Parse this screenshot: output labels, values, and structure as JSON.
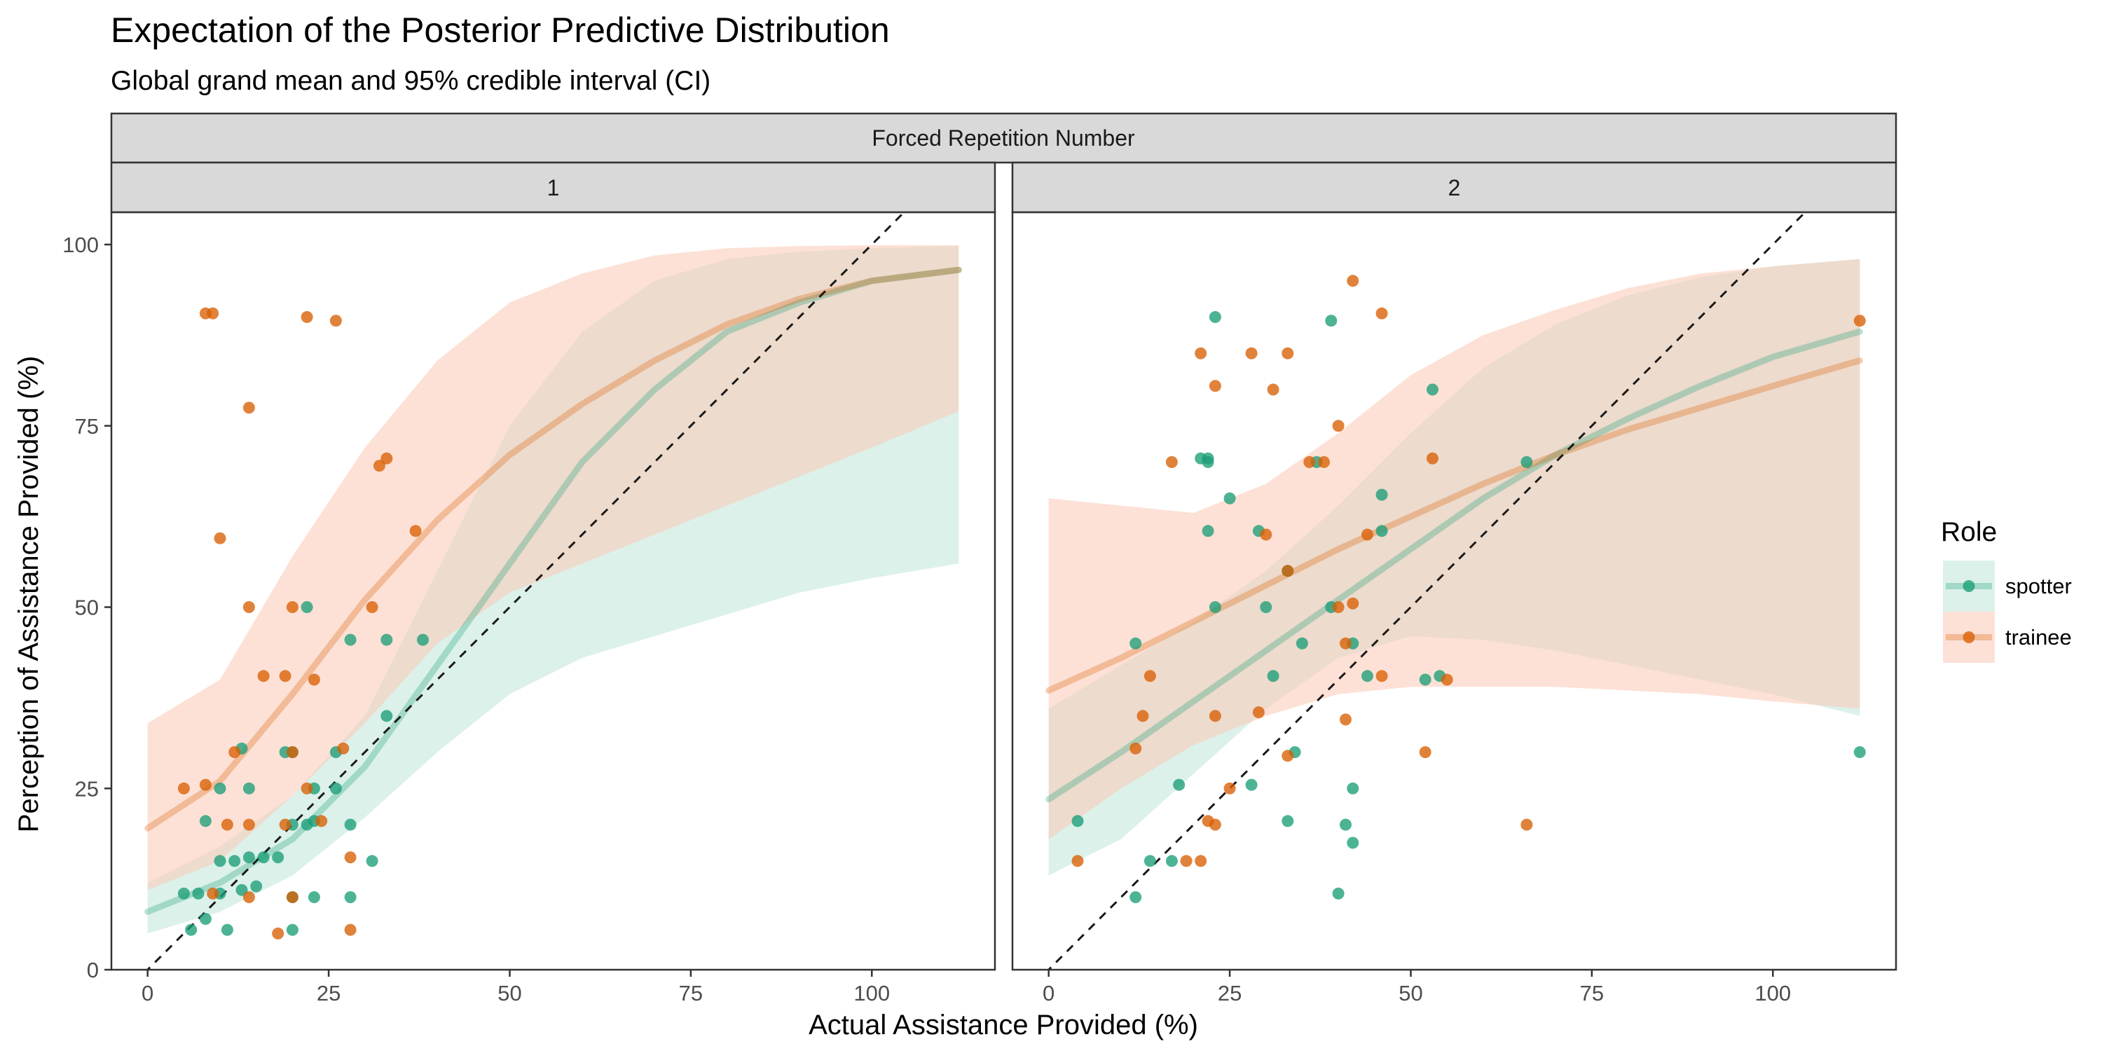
{
  "chart_data": {
    "type": "scatter",
    "title": "Expectation of the Posterior Predictive Distribution",
    "subtitle": "Global grand mean and 95% credible interval (CI)",
    "facet_title": "Forced Repetition Number",
    "xlabel": "Actual Assistance Provided (%)",
    "ylabel": "Perception of Assistance Provided (%)",
    "xlim": [
      -5,
      117
    ],
    "ylim": [
      0,
      100
    ],
    "x_ticks": [
      "0",
      "25",
      "50",
      "75",
      "100"
    ],
    "y_ticks": [
      "0",
      "25",
      "50",
      "75",
      "100"
    ],
    "reference_line": "y = x (dashed)",
    "legend": {
      "title": "Role",
      "position": "right",
      "entries": [
        {
          "name": "spotter",
          "color": "#1b9e77",
          "band_color": "#bfe6d8"
        },
        {
          "name": "trainee",
          "color": "#d95f02",
          "band_color": "#fbc8b4"
        }
      ]
    },
    "panels": [
      {
        "label": "1",
        "fits": [
          {
            "name": "spotter",
            "x": [
              0,
              10,
              20,
              30,
              40,
              50,
              60,
              70,
              80,
              90,
              100,
              112
            ],
            "mean": [
              8,
              12,
              18,
              28,
              42,
              56,
              70,
              80,
              88,
              92,
              95,
              96.5
            ],
            "lower": [
              5,
              8,
              13,
              21,
              30,
              38,
              43,
              46,
              49,
              52,
              54,
              56
            ],
            "upper": [
              12,
              17,
              24,
              35,
              55,
              75,
              88,
              95,
              98,
              99,
              99.5,
              99.8
            ]
          },
          {
            "name": "trainee",
            "x": [
              0,
              10,
              20,
              30,
              40,
              50,
              60,
              70,
              80,
              90,
              100,
              112
            ],
            "mean": [
              19.5,
              26,
              38,
              51,
              62,
              71,
              78,
              84,
              89,
              92.5,
              95,
              96.5
            ],
            "lower": [
              11,
              15,
              24,
              34,
              45,
              52,
              56,
              60,
              64,
              68,
              72,
              77
            ],
            "upper": [
              34,
              40,
              57,
              72,
              84,
              92,
              96,
              98.5,
              99.5,
              99.8,
              99.9,
              99.9
            ]
          }
        ],
        "points": [
          {
            "x": 6,
            "y": 5.5,
            "role": "spotter"
          },
          {
            "x": 11,
            "y": 5.5,
            "role": "spotter"
          },
          {
            "x": 20,
            "y": 5.5,
            "role": "spotter"
          },
          {
            "x": 8,
            "y": 7,
            "role": "spotter"
          },
          {
            "x": 5,
            "y": 10.5,
            "role": "spotter"
          },
          {
            "x": 7,
            "y": 10.5,
            "role": "spotter"
          },
          {
            "x": 10,
            "y": 10.5,
            "role": "spotter"
          },
          {
            "x": 13,
            "y": 11,
            "role": "spotter"
          },
          {
            "x": 15,
            "y": 11.5,
            "role": "spotter"
          },
          {
            "x": 20,
            "y": 10,
            "role": "spotter"
          },
          {
            "x": 23,
            "y": 10,
            "role": "spotter"
          },
          {
            "x": 28,
            "y": 10,
            "role": "spotter"
          },
          {
            "x": 10,
            "y": 15,
            "role": "spotter"
          },
          {
            "x": 12,
            "y": 15,
            "role": "spotter"
          },
          {
            "x": 14,
            "y": 15.5,
            "role": "spotter"
          },
          {
            "x": 16,
            "y": 15.5,
            "role": "spotter"
          },
          {
            "x": 18,
            "y": 15.5,
            "role": "spotter"
          },
          {
            "x": 31,
            "y": 15,
            "role": "spotter"
          },
          {
            "x": 20,
            "y": 20,
            "role": "spotter"
          },
          {
            "x": 22,
            "y": 20,
            "role": "spotter"
          },
          {
            "x": 23,
            "y": 20.5,
            "role": "spotter"
          },
          {
            "x": 28,
            "y": 20,
            "role": "spotter"
          },
          {
            "x": 8,
            "y": 20.5,
            "role": "spotter"
          },
          {
            "x": 10,
            "y": 25,
            "role": "spotter"
          },
          {
            "x": 14,
            "y": 25,
            "role": "spotter"
          },
          {
            "x": 23,
            "y": 25,
            "role": "spotter"
          },
          {
            "x": 26,
            "y": 25,
            "role": "spotter"
          },
          {
            "x": 13,
            "y": 30.5,
            "role": "spotter"
          },
          {
            "x": 19,
            "y": 30,
            "role": "spotter"
          },
          {
            "x": 20,
            "y": 30,
            "role": "spotter"
          },
          {
            "x": 26,
            "y": 30,
            "role": "spotter"
          },
          {
            "x": 33,
            "y": 35,
            "role": "spotter"
          },
          {
            "x": 22,
            "y": 50,
            "role": "spotter"
          },
          {
            "x": 28,
            "y": 45.5,
            "role": "spotter"
          },
          {
            "x": 33,
            "y": 45.5,
            "role": "spotter"
          },
          {
            "x": 38,
            "y": 45.5,
            "role": "spotter"
          },
          {
            "x": 18,
            "y": 5,
            "role": "trainee"
          },
          {
            "x": 28,
            "y": 5.5,
            "role": "trainee"
          },
          {
            "x": 9,
            "y": 10.5,
            "role": "trainee"
          },
          {
            "x": 14,
            "y": 10,
            "role": "trainee"
          },
          {
            "x": 20,
            "y": 10,
            "role": "trainee"
          },
          {
            "x": 28,
            "y": 15.5,
            "role": "trainee"
          },
          {
            "x": 11,
            "y": 20,
            "role": "trainee"
          },
          {
            "x": 14,
            "y": 20,
            "role": "trainee"
          },
          {
            "x": 19,
            "y": 20,
            "role": "trainee"
          },
          {
            "x": 24,
            "y": 20.5,
            "role": "trainee"
          },
          {
            "x": 5,
            "y": 25,
            "role": "trainee"
          },
          {
            "x": 8,
            "y": 25.5,
            "role": "trainee"
          },
          {
            "x": 22,
            "y": 25,
            "role": "trainee"
          },
          {
            "x": 12,
            "y": 30,
            "role": "trainee"
          },
          {
            "x": 20,
            "y": 30,
            "role": "trainee"
          },
          {
            "x": 27,
            "y": 30.5,
            "role": "trainee"
          },
          {
            "x": 23,
            "y": 40,
            "role": "trainee"
          },
          {
            "x": 16,
            "y": 40.5,
            "role": "trainee"
          },
          {
            "x": 19,
            "y": 40.5,
            "role": "trainee"
          },
          {
            "x": 14,
            "y": 50,
            "role": "trainee"
          },
          {
            "x": 20,
            "y": 50,
            "role": "trainee"
          },
          {
            "x": 31,
            "y": 50,
            "role": "trainee"
          },
          {
            "x": 10,
            "y": 59.5,
            "role": "trainee"
          },
          {
            "x": 37,
            "y": 60.5,
            "role": "trainee"
          },
          {
            "x": 32,
            "y": 69.5,
            "role": "trainee"
          },
          {
            "x": 33,
            "y": 70.5,
            "role": "trainee"
          },
          {
            "x": 14,
            "y": 77.5,
            "role": "trainee"
          },
          {
            "x": 8,
            "y": 90.5,
            "role": "trainee"
          },
          {
            "x": 9,
            "y": 90.5,
            "role": "trainee"
          },
          {
            "x": 22,
            "y": 90,
            "role": "trainee"
          },
          {
            "x": 26,
            "y": 89.5,
            "role": "trainee"
          }
        ]
      },
      {
        "label": "2",
        "fits": [
          {
            "name": "spotter",
            "x": [
              0,
              10,
              20,
              30,
              40,
              50,
              60,
              70,
              80,
              90,
              100,
              112
            ],
            "mean": [
              23.5,
              30,
              37,
              44,
              51,
              58,
              65,
              71,
              76,
              80.5,
              84.5,
              88
            ],
            "lower": [
              13,
              18,
              27,
              36,
              43,
              46,
              45.5,
              44,
              42,
              40,
              38,
              35
            ],
            "upper": [
              36,
              42,
              48,
              55,
              64,
              74,
              83,
              89,
              93,
              95.5,
              97,
              98
            ]
          },
          {
            "name": "trainee",
            "x": [
              0,
              10,
              20,
              30,
              40,
              50,
              60,
              70,
              80,
              90,
              100,
              112
            ],
            "mean": [
              38.5,
              43,
              48,
              53,
              58,
              62.5,
              67,
              71,
              74.5,
              77.5,
              80.5,
              84
            ],
            "lower": [
              18,
              25,
              31,
              35,
              38,
              39,
              39,
              39,
              38.5,
              38,
              37,
              36
            ],
            "upper": [
              65,
              64,
              63,
              67,
              74,
              82,
              87.5,
              91,
              94,
              96,
              97,
              98
            ]
          }
        ],
        "points": [
          {
            "x": 4,
            "y": 20.5,
            "role": "spotter"
          },
          {
            "x": 12,
            "y": 10,
            "role": "spotter"
          },
          {
            "x": 14,
            "y": 15,
            "role": "spotter"
          },
          {
            "x": 17,
            "y": 15,
            "role": "spotter"
          },
          {
            "x": 18,
            "y": 25.5,
            "role": "spotter"
          },
          {
            "x": 12,
            "y": 45,
            "role": "spotter"
          },
          {
            "x": 21,
            "y": 70.5,
            "role": "spotter"
          },
          {
            "x": 22,
            "y": 60.5,
            "role": "spotter"
          },
          {
            "x": 22,
            "y": 70,
            "role": "spotter"
          },
          {
            "x": 22,
            "y": 70.5,
            "role": "spotter"
          },
          {
            "x": 23,
            "y": 90,
            "role": "spotter"
          },
          {
            "x": 23,
            "y": 50,
            "role": "spotter"
          },
          {
            "x": 25,
            "y": 65,
            "role": "spotter"
          },
          {
            "x": 28,
            "y": 25.5,
            "role": "spotter"
          },
          {
            "x": 29,
            "y": 60.5,
            "role": "spotter"
          },
          {
            "x": 30,
            "y": 50,
            "role": "spotter"
          },
          {
            "x": 31,
            "y": 40.5,
            "role": "spotter"
          },
          {
            "x": 33,
            "y": 55,
            "role": "spotter"
          },
          {
            "x": 33,
            "y": 20.5,
            "role": "spotter"
          },
          {
            "x": 34,
            "y": 30,
            "role": "spotter"
          },
          {
            "x": 35,
            "y": 45,
            "role": "spotter"
          },
          {
            "x": 37,
            "y": 70,
            "role": "spotter"
          },
          {
            "x": 39,
            "y": 50,
            "role": "spotter"
          },
          {
            "x": 39,
            "y": 89.5,
            "role": "spotter"
          },
          {
            "x": 40,
            "y": 10.5,
            "role": "spotter"
          },
          {
            "x": 41,
            "y": 20,
            "role": "spotter"
          },
          {
            "x": 42,
            "y": 17.5,
            "role": "spotter"
          },
          {
            "x": 42,
            "y": 25,
            "role": "spotter"
          },
          {
            "x": 42,
            "y": 45,
            "role": "spotter"
          },
          {
            "x": 44,
            "y": 40.5,
            "role": "spotter"
          },
          {
            "x": 46,
            "y": 60.5,
            "role": "spotter"
          },
          {
            "x": 46,
            "y": 65.5,
            "role": "spotter"
          },
          {
            "x": 52,
            "y": 40,
            "role": "spotter"
          },
          {
            "x": 53,
            "y": 80,
            "role": "spotter"
          },
          {
            "x": 54,
            "y": 40.5,
            "role": "spotter"
          },
          {
            "x": 66,
            "y": 70,
            "role": "spotter"
          },
          {
            "x": 112,
            "y": 30,
            "role": "spotter"
          },
          {
            "x": 4,
            "y": 15,
            "role": "trainee"
          },
          {
            "x": 12,
            "y": 30.5,
            "role": "trainee"
          },
          {
            "x": 13,
            "y": 35,
            "role": "trainee"
          },
          {
            "x": 14,
            "y": 40.5,
            "role": "trainee"
          },
          {
            "x": 17,
            "y": 70,
            "role": "trainee"
          },
          {
            "x": 19,
            "y": 15,
            "role": "trainee"
          },
          {
            "x": 21,
            "y": 15,
            "role": "trainee"
          },
          {
            "x": 21,
            "y": 85,
            "role": "trainee"
          },
          {
            "x": 22,
            "y": 20.5,
            "role": "trainee"
          },
          {
            "x": 23,
            "y": 20,
            "role": "trainee"
          },
          {
            "x": 23,
            "y": 35,
            "role": "trainee"
          },
          {
            "x": 23,
            "y": 80.5,
            "role": "trainee"
          },
          {
            "x": 25,
            "y": 25,
            "role": "trainee"
          },
          {
            "x": 28,
            "y": 85,
            "role": "trainee"
          },
          {
            "x": 29,
            "y": 35.5,
            "role": "trainee"
          },
          {
            "x": 30,
            "y": 60,
            "role": "trainee"
          },
          {
            "x": 31,
            "y": 80,
            "role": "trainee"
          },
          {
            "x": 33,
            "y": 29.5,
            "role": "trainee"
          },
          {
            "x": 33,
            "y": 55,
            "role": "trainee"
          },
          {
            "x": 33,
            "y": 85,
            "role": "trainee"
          },
          {
            "x": 36,
            "y": 70,
            "role": "trainee"
          },
          {
            "x": 38,
            "y": 70,
            "role": "trainee"
          },
          {
            "x": 40,
            "y": 50,
            "role": "trainee"
          },
          {
            "x": 40,
            "y": 75,
            "role": "trainee"
          },
          {
            "x": 41,
            "y": 45,
            "role": "trainee"
          },
          {
            "x": 41,
            "y": 34.5,
            "role": "trainee"
          },
          {
            "x": 42,
            "y": 50.5,
            "role": "trainee"
          },
          {
            "x": 42,
            "y": 95,
            "role": "trainee"
          },
          {
            "x": 44,
            "y": 60,
            "role": "trainee"
          },
          {
            "x": 46,
            "y": 40.5,
            "role": "trainee"
          },
          {
            "x": 46,
            "y": 90.5,
            "role": "trainee"
          },
          {
            "x": 52,
            "y": 30,
            "role": "trainee"
          },
          {
            "x": 53,
            "y": 70.5,
            "role": "trainee"
          },
          {
            "x": 55,
            "y": 40,
            "role": "trainee"
          },
          {
            "x": 66,
            "y": 20,
            "role": "trainee"
          },
          {
            "x": 112,
            "y": 89.5,
            "role": "trainee"
          }
        ]
      }
    ]
  }
}
